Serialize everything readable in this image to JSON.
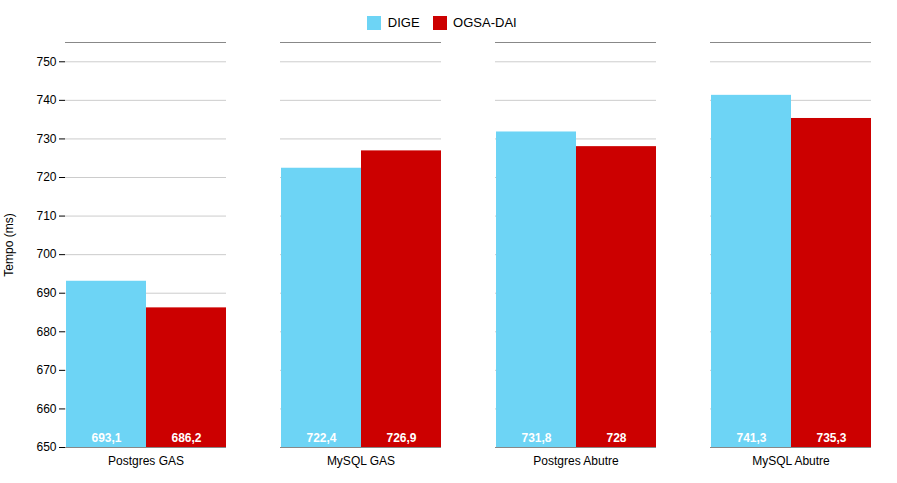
{
  "chart_data": {
    "type": "bar",
    "categories": [
      "Postgres GAS",
      "MySQL GAS",
      "Postgres Abutre",
      "MySQL Abutre"
    ],
    "series": [
      {
        "name": "DIGE",
        "color": "#6DD4F5",
        "values": [
          693.1,
          722.4,
          731.8,
          741.3
        ],
        "value_labels": [
          "693,1",
          "722,4",
          "731,8",
          "741,3"
        ]
      },
      {
        "name": "OGSA-DAI",
        "color": "#CC0000",
        "values": [
          686.2,
          726.9,
          728.0,
          735.3
        ],
        "value_labels": [
          "686,2",
          "726,9",
          "728",
          "735,3"
        ]
      }
    ],
    "ylabel": "Tempo (ms)",
    "ylim": [
      650,
      755
    ],
    "yticks": [
      650,
      660,
      670,
      680,
      690,
      700,
      710,
      720,
      730,
      740,
      750
    ],
    "grid": true,
    "legend": "top",
    "data_labels": true
  }
}
